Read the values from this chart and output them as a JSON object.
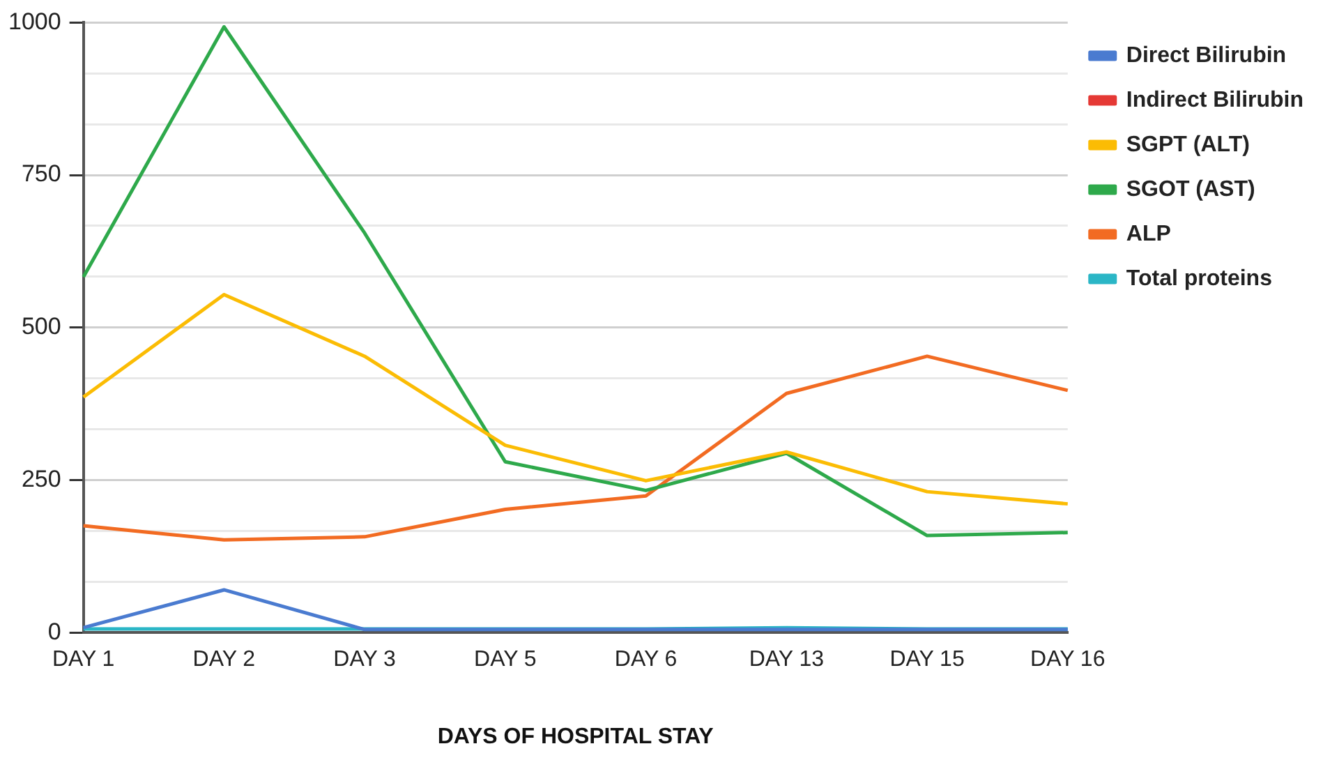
{
  "chart_data": {
    "type": "line",
    "xlabel": "DAYS OF HOSPITAL STAY",
    "categories": [
      "DAY 1",
      "DAY 2",
      "DAY 3",
      "DAY 5",
      "DAY 6",
      "DAY 13",
      "DAY 15",
      "DAY 16"
    ],
    "series": [
      {
        "name": "Direct Bilirubin",
        "color": "#4a7bd0",
        "values": [
          8,
          70,
          5,
          5,
          5,
          5,
          5,
          5
        ]
      },
      {
        "name": "Indirect Bilirubin",
        "color": "#e53935",
        "values": [
          null,
          null,
          null,
          null,
          null,
          null,
          null,
          null
        ]
      },
      {
        "name": "SGPT (ALT)",
        "color": "#fbbc04",
        "values": [
          386,
          554,
          453,
          307,
          249,
          296,
          231,
          211
        ]
      },
      {
        "name": "SGOT (AST)",
        "color": "#2ea94b",
        "values": [
          583,
          993,
          655,
          280,
          233,
          294,
          159,
          164
        ]
      },
      {
        "name": "ALP",
        "color": "#f26b22",
        "values": [
          175,
          152,
          157,
          202,
          224,
          392,
          453,
          397
        ]
      },
      {
        "name": "Total proteins",
        "color": "#2bb6c6",
        "values": [
          6,
          6,
          6,
          6,
          6,
          8,
          6,
          6
        ]
      }
    ],
    "ylim": [
      0,
      1000
    ],
    "yticks": [
      0,
      {
        "value": 83.3,
        "label": null
      },
      {
        "value": 166.7,
        "label": null
      },
      250,
      {
        "value": 333.3,
        "label": null
      },
      {
        "value": 416.7,
        "label": null
      },
      500,
      {
        "value": 583.3,
        "label": null
      },
      {
        "value": 666.7,
        "label": null
      },
      750,
      {
        "value": 833.3,
        "label": null
      },
      {
        "value": 916.7,
        "label": null
      },
      1000
    ],
    "grid": "y",
    "legend": "top right",
    "marker": "none",
    "line_style": "solid"
  }
}
